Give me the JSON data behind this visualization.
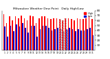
{
  "title": "Milwaukee Weather Dew Point",
  "subtitle": "Daily High/Low",
  "high_values": [
    72,
    55,
    68,
    60,
    68,
    65,
    70,
    65,
    60,
    70,
    68,
    55,
    65,
    68,
    68,
    65,
    63,
    65,
    65,
    63,
    60,
    65,
    65,
    63,
    60,
    65,
    63,
    63,
    65,
    68,
    63
  ],
  "low_values": [
    48,
    28,
    50,
    38,
    52,
    48,
    55,
    45,
    35,
    50,
    50,
    28,
    42,
    50,
    50,
    45,
    40,
    42,
    45,
    42,
    38,
    42,
    45,
    42,
    38,
    42,
    40,
    40,
    42,
    45,
    30
  ],
  "high_color": "#ff0000",
  "low_color": "#0000cc",
  "bg_color": "#ffffff",
  "plot_bg": "#ffffff",
  "ylim": [
    0,
    80
  ],
  "ytick_values": [
    10,
    20,
    30,
    40,
    50,
    60,
    70,
    80
  ],
  "legend_high": "High",
  "legend_low": "Low",
  "dashed_indices": [
    19,
    20,
    21
  ],
  "bar_width": 0.38,
  "n_days": 31
}
